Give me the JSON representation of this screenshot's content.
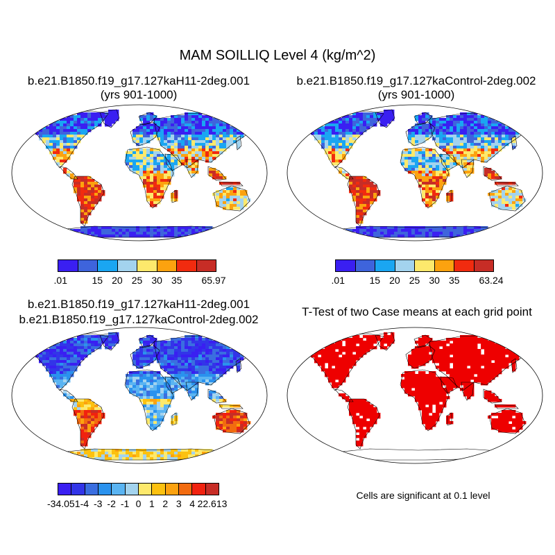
{
  "main_title": "MAM SOILLIQ Level 4 (kg/m^2)",
  "panels": {
    "case1": {
      "title_line1": "b.e21.B1850.f19_g17.127kaH11-2deg.001",
      "title_line2": "(yrs 901-1000)",
      "colorbar": {
        "colors": [
          "#3a1ff2",
          "#3e64dc",
          "#1aa6f2",
          "#a3d3ee",
          "#fde96c",
          "#fca20f",
          "#f12b0f",
          "#c72d26"
        ],
        "ticks": [
          ".01",
          "15",
          "20",
          "25",
          "30",
          "35",
          "65.97"
        ]
      }
    },
    "case2": {
      "title_line1": "b.e21.B1850.f19_g17.127kaControl-2deg.002",
      "title_line2": "(yrs 901-1000)",
      "colorbar": {
        "colors": [
          "#3a1ff2",
          "#3e64dc",
          "#1aa6f2",
          "#a3d3ee",
          "#fde96c",
          "#fca20f",
          "#f12b0f",
          "#c72d26"
        ],
        "ticks": [
          ".01",
          "15",
          "20",
          "25",
          "30",
          "35",
          "63.24"
        ]
      }
    },
    "diff": {
      "title_line1": "b.e21.B1850.f19_g17.127kaH11-2deg.001",
      "title_line2": "b.e21.B1850.f19_g17.127kaControl-2deg.002",
      "colorbar": {
        "colors": [
          "#3a1ff2",
          "#3235e8",
          "#3a6ee0",
          "#2a92ee",
          "#5ab4f2",
          "#a3d3ee",
          "#fde96c",
          "#fcc10f",
          "#fca20f",
          "#f26b0f",
          "#f1220f",
          "#c72d26"
        ],
        "ticks": [
          "-34.051",
          "-4",
          "-3",
          "-2",
          "-1",
          "0",
          "1",
          "2",
          "3",
          "4",
          "22.613"
        ]
      }
    },
    "ttest": {
      "title": "T-Test of two Case means at each grid point",
      "note": "Cells are significant at 0.1 level",
      "color": "#ee0000"
    }
  }
}
